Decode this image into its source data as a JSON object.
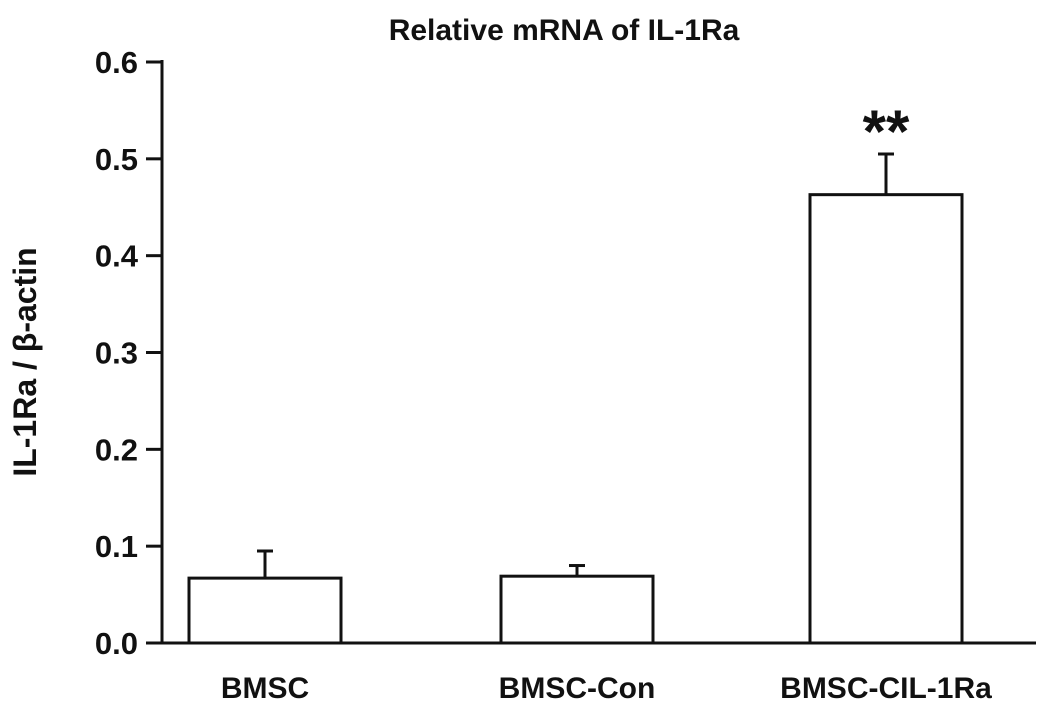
{
  "chart_data": {
    "type": "bar",
    "title": "Relative mRNA of IL-1Ra",
    "xlabel": "",
    "ylabel": "IL-1Ra / β-actin",
    "categories": [
      "BMSC",
      "BMSC-Con",
      "BMSC-CIL-1Ra"
    ],
    "values": [
      0.067,
      0.069,
      0.463
    ],
    "error_upper": [
      0.028,
      0.011,
      0.042
    ],
    "annotations": [
      {
        "category": "BMSC-CIL-1Ra",
        "text": "**"
      }
    ],
    "ylim": [
      0.0,
      0.6
    ],
    "yticks": [
      0.0,
      0.1,
      0.2,
      0.3,
      0.4,
      0.5,
      0.6
    ],
    "ytick_labels": [
      "0.0",
      "0.1",
      "0.2",
      "0.3",
      "0.4",
      "0.5",
      "0.6"
    ],
    "grid": false,
    "legend": "none",
    "colors": {
      "bar_fill": "#ffffff",
      "bar_stroke": "#111111",
      "axis": "#111111"
    }
  }
}
